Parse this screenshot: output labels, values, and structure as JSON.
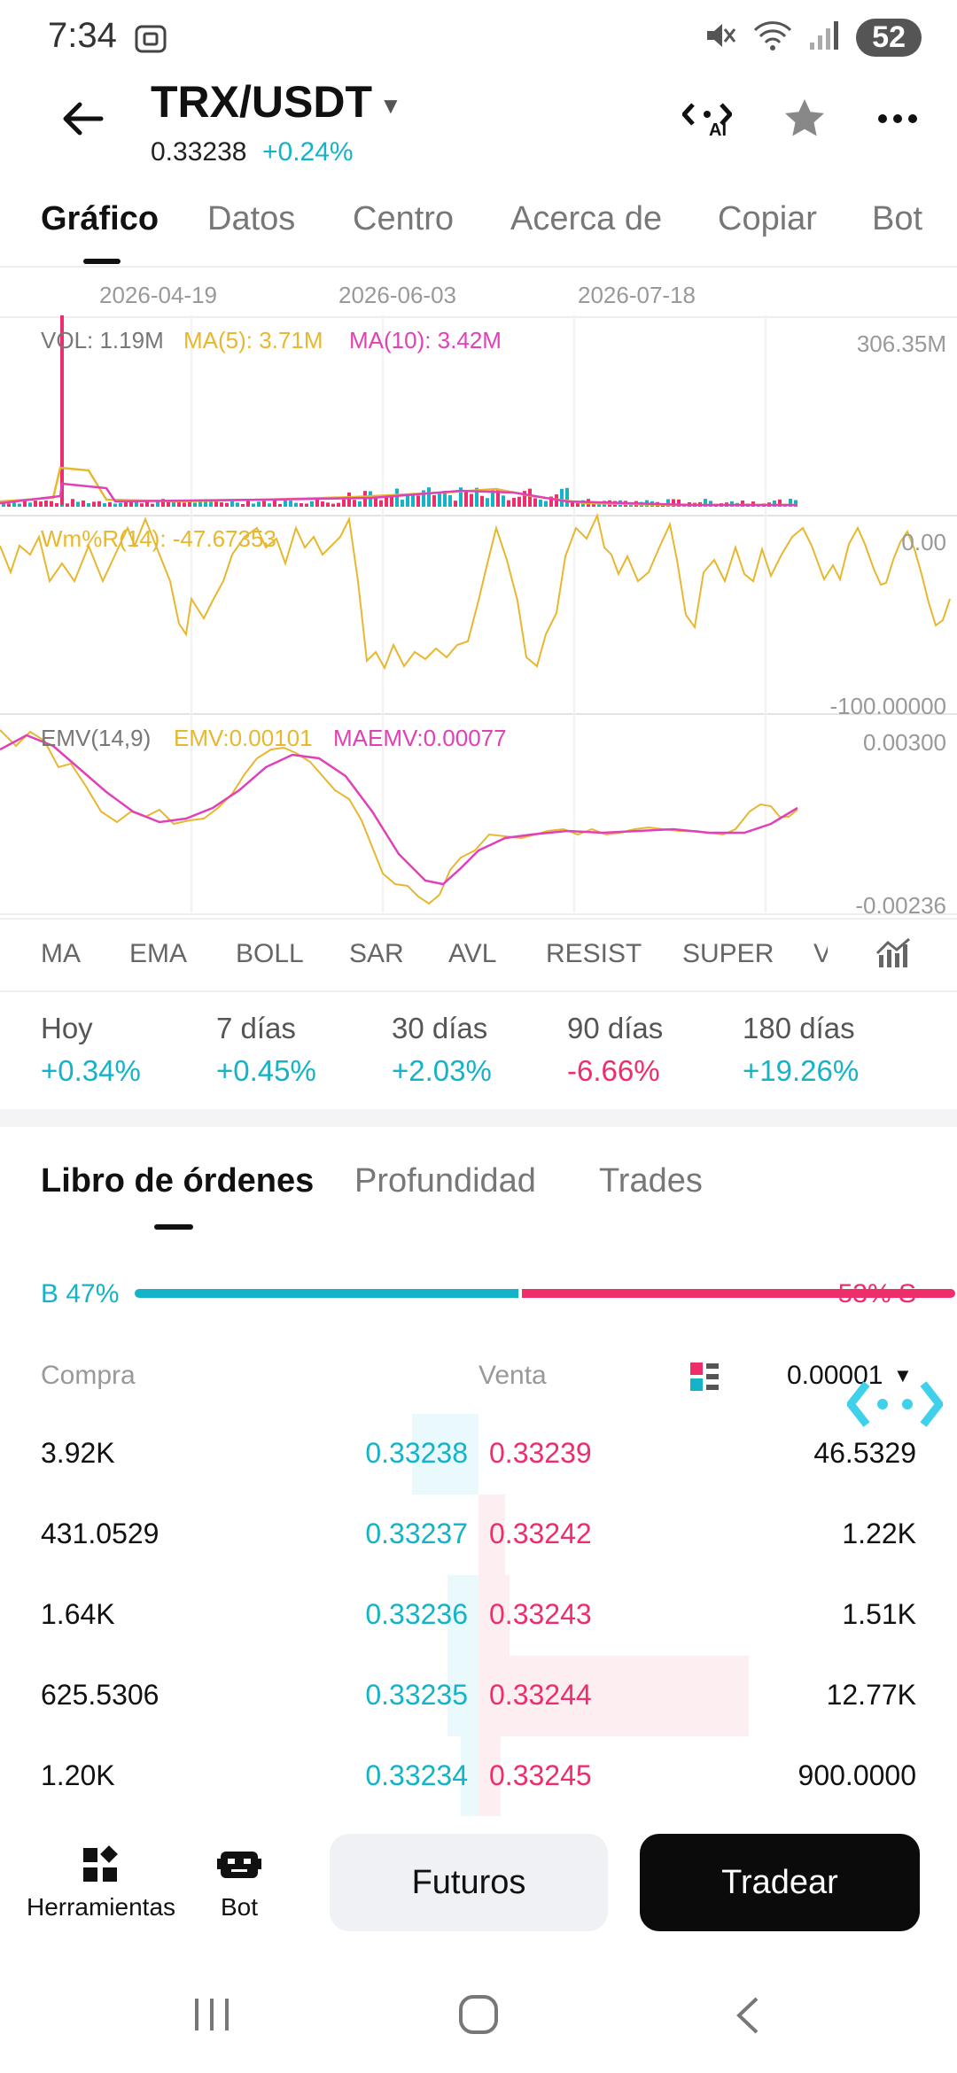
{
  "status_bar": {
    "time": "7:34",
    "battery": "52"
  },
  "header": {
    "pair": "TRX/USDT",
    "price": "0.33238",
    "change": "+0.24%",
    "ai_label": "AI"
  },
  "tabs": [
    "Gráfico",
    "Datos",
    "Centro",
    "Acerca de",
    "Copiar",
    "Bot"
  ],
  "chart": {
    "dates": [
      "2026-04-19",
      "2026-06-03",
      "2026-07-18"
    ],
    "volume": {
      "vol_label": "VOL: 1.19M",
      "ma5_label": "MA(5): 3.71M",
      "ma10_label": "MA(10): 3.42M",
      "axis_max": "306.35M"
    },
    "williams": {
      "label": "Wm%R(14): -47.67353",
      "axis_top": "0.00",
      "axis_bottom": "-100.00000"
    },
    "emv": {
      "label": "EMV(14,9)",
      "emv_label": "EMV:0.00101",
      "maemv_label": "MAEMV:0.00077",
      "axis_top": "0.00300",
      "axis_bottom": "-0.00236"
    },
    "colors": {
      "ma5": "#e8b730",
      "ma10": "#e040b8",
      "up": "#14b3c7",
      "down": "#ee2e6b"
    }
  },
  "indicators": [
    "MA",
    "EMA",
    "BOLL",
    "SAR",
    "AVL",
    "RESIST",
    "SUPER",
    "V"
  ],
  "performance": [
    {
      "label": "Hoy",
      "value": "+0.34%",
      "positive": true
    },
    {
      "label": "7 días",
      "value": "+0.45%",
      "positive": true
    },
    {
      "label": "30 días",
      "value": "+2.03%",
      "positive": true
    },
    {
      "label": "90 días",
      "value": "-6.66%",
      "positive": false
    },
    {
      "label": "180 días",
      "value": "+19.26%",
      "positive": true
    }
  ],
  "orderbook": {
    "tabs": [
      "Libro de órdenes",
      "Profundidad",
      "Trades"
    ],
    "buy_ratio_label": "B 47%",
    "sell_ratio_label": "53% S",
    "buy_ratio": 0.47,
    "buy_header": "Compra",
    "sell_header": "Venta",
    "precision": "0.00001",
    "rows": [
      {
        "bid_qty": "3.92K",
        "bid_price": "0.33238",
        "ask_price": "0.33239",
        "ask_qty": "46.5329",
        "bid_depth": 0.15,
        "ask_depth": 0.0
      },
      {
        "bid_qty": "431.0529",
        "bid_price": "0.33237",
        "ask_price": "0.33242",
        "ask_qty": "1.22K",
        "bid_depth": 0.0,
        "ask_depth": 0.06
      },
      {
        "bid_qty": "1.64K",
        "bid_price": "0.33236",
        "ask_price": "0.33243",
        "ask_qty": "1.51K",
        "bid_depth": 0.07,
        "ask_depth": 0.07
      },
      {
        "bid_qty": "625.5306",
        "bid_price": "0.33235",
        "ask_price": "0.33244",
        "ask_qty": "12.77K",
        "bid_depth": 0.07,
        "ask_depth": 0.61
      },
      {
        "bid_qty": "1.20K",
        "bid_price": "0.33234",
        "ask_price": "0.33245",
        "ask_qty": "900.0000",
        "bid_depth": 0.04,
        "ask_depth": 0.05
      }
    ]
  },
  "bottom_bar": {
    "tools_label": "Herramientas",
    "bot_label": "Bot",
    "futures_label": "Futuros",
    "trade_label": "Tradear"
  }
}
